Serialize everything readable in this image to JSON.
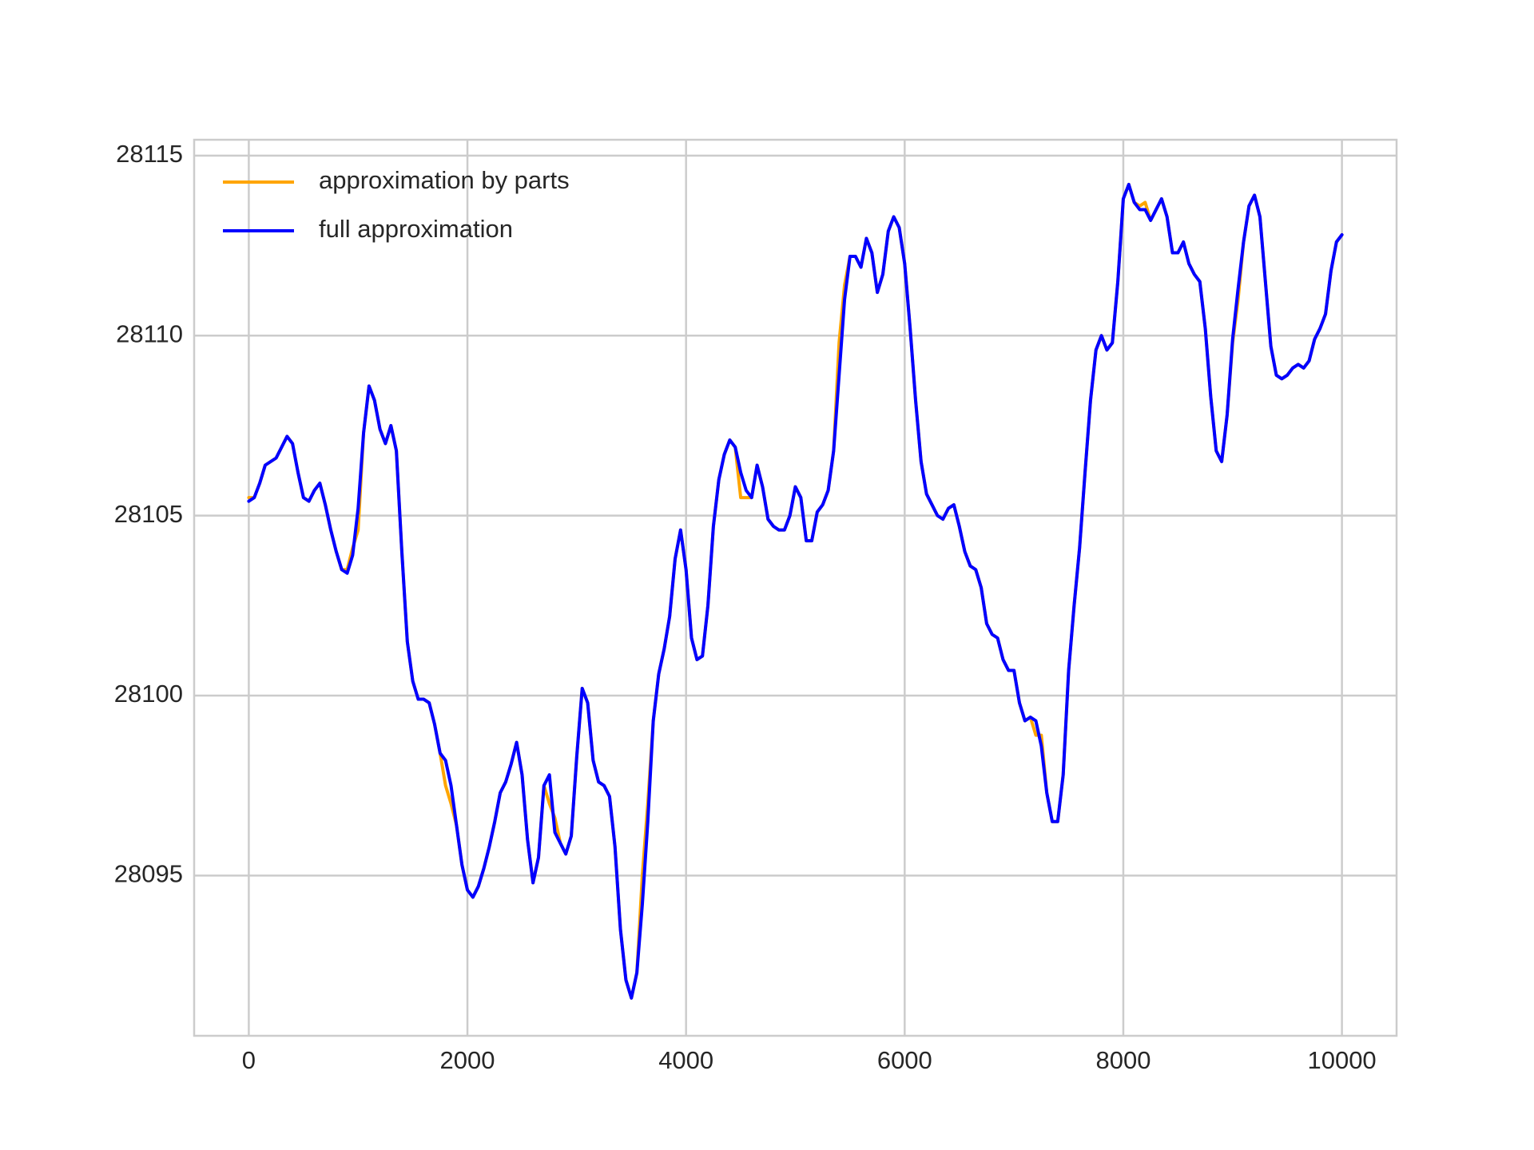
{
  "chart_data": {
    "type": "line",
    "x": [
      0,
      50,
      100,
      150,
      200,
      250,
      300,
      350,
      400,
      450,
      500,
      550,
      600,
      650,
      700,
      750,
      800,
      850,
      900,
      950,
      1000,
      1050,
      1100,
      1150,
      1200,
      1250,
      1300,
      1350,
      1400,
      1450,
      1500,
      1550,
      1600,
      1650,
      1700,
      1750,
      1800,
      1850,
      1900,
      1950,
      2000,
      2050,
      2100,
      2150,
      2200,
      2250,
      2300,
      2350,
      2400,
      2450,
      2500,
      2550,
      2600,
      2650,
      2700,
      2750,
      2800,
      2850,
      2900,
      2950,
      3000,
      3050,
      3100,
      3150,
      3200,
      3250,
      3300,
      3350,
      3400,
      3450,
      3500,
      3550,
      3600,
      3650,
      3700,
      3750,
      3800,
      3850,
      3900,
      3950,
      4000,
      4050,
      4100,
      4150,
      4200,
      4250,
      4300,
      4350,
      4400,
      4450,
      4500,
      4550,
      4600,
      4650,
      4700,
      4750,
      4800,
      4850,
      4900,
      4950,
      5000,
      5050,
      5100,
      5150,
      5200,
      5250,
      5300,
      5350,
      5400,
      5450,
      5500,
      5550,
      5600,
      5650,
      5700,
      5750,
      5800,
      5850,
      5900,
      5950,
      6000,
      6050,
      6100,
      6150,
      6200,
      6250,
      6300,
      6350,
      6400,
      6450,
      6500,
      6550,
      6600,
      6650,
      6700,
      6750,
      6800,
      6850,
      6900,
      6950,
      7000,
      7050,
      7100,
      7150,
      7200,
      7250,
      7300,
      7350,
      7400,
      7450,
      7500,
      7550,
      7600,
      7650,
      7700,
      7750,
      7800,
      7850,
      7900,
      7950,
      8000,
      8050,
      8100,
      8150,
      8200,
      8250,
      8300,
      8350,
      8400,
      8450,
      8500,
      8550,
      8600,
      8650,
      8700,
      8750,
      8800,
      8850,
      8900,
      8950,
      9000,
      9050,
      9100,
      9150,
      9200,
      9250,
      9300,
      9350,
      9400,
      9450,
      9500,
      9550,
      9600,
      9650,
      9700,
      9750,
      9800,
      9850,
      9900,
      9950,
      10000
    ],
    "series": [
      {
        "name": "approximation by parts",
        "color": "orange",
        "values": [
          28105.5,
          28105.5,
          28105.9,
          28106.4,
          28106.5,
          28106.6,
          28106.9,
          28107.2,
          28107.0,
          28106.2,
          28105.5,
          28105.4,
          28105.7,
          28105.9,
          28105.3,
          28104.6,
          28104.0,
          28103.5,
          28103.5,
          28104.1,
          28104.6,
          28107.3,
          28108.6,
          28108.2,
          28107.4,
          28107.0,
          28107.5,
          28106.8,
          28104.0,
          28101.5,
          28100.4,
          28099.9,
          28099.9,
          28099.8,
          28099.2,
          28098.4,
          28097.5,
          28097.0,
          28096.4,
          28095.3,
          28094.6,
          28094.4,
          28094.7,
          28095.2,
          28095.8,
          28096.5,
          28097.3,
          28097.6,
          28098.1,
          28098.7,
          28097.8,
          28096.0,
          28094.8,
          28095.5,
          28097.5,
          28097.0,
          28096.6,
          28095.9,
          28095.6,
          28096.1,
          28098.3,
          28100.2,
          28099.8,
          28098.2,
          28097.6,
          28097.5,
          28097.2,
          28095.8,
          28093.5,
          28092.1,
          28091.6,
          28092.3,
          28095.0,
          28097.0,
          28099.3,
          28100.6,
          28101.3,
          28102.2,
          28103.8,
          28104.6,
          28103.5,
          28101.6,
          28101.0,
          28101.1,
          28102.5,
          28104.7,
          28106.0,
          28106.7,
          28107.1,
          28106.9,
          28105.5,
          28105.5,
          28105.5,
          28106.4,
          28105.8,
          28104.9,
          28104.7,
          28104.6,
          28104.6,
          28105.0,
          28105.8,
          28105.5,
          28104.3,
          28104.3,
          28105.1,
          28105.3,
          28105.7,
          28106.8,
          28109.8,
          28111.4,
          28112.2,
          28112.2,
          28111.9,
          28112.7,
          28112.3,
          28111.2,
          28111.7,
          28112.9,
          28113.3,
          28113.0,
          28112.0,
          28110.2,
          28108.2,
          28106.5,
          28105.6,
          28105.3,
          28105.0,
          28104.9,
          28105.2,
          28105.3,
          28104.7,
          28104.0,
          28103.6,
          28103.5,
          28103.0,
          28102.0,
          28101.7,
          28101.6,
          28101.0,
          28100.7,
          28100.7,
          28099.8,
          28099.3,
          28099.4,
          28098.9,
          28098.9,
          28097.3,
          28096.5,
          28096.5,
          28097.8,
          28100.7,
          28102.5,
          28104.1,
          28106.2,
          28108.2,
          28109.6,
          28110.0,
          28109.6,
          28109.8,
          28111.5,
          28113.8,
          28114.2,
          28113.7,
          28113.6,
          28113.7,
          28113.2,
          28113.5,
          28113.8,
          28113.3,
          28112.3,
          28112.3,
          28112.6,
          28112.0,
          28111.7,
          28111.5,
          28110.2,
          28108.3,
          28106.8,
          28106.5,
          28107.8,
          28109.8,
          28111.0,
          28112.6,
          28113.6,
          28113.9,
          28113.3,
          28111.5,
          28109.7,
          28108.9,
          28108.8,
          28108.9,
          28109.1,
          28109.2,
          28109.1,
          28109.3,
          28109.9,
          28110.2,
          28110.6,
          28111.8,
          28112.6,
          28112.8
        ]
      },
      {
        "name": "full approximation",
        "color": "blue",
        "values": [
          28105.4,
          28105.5,
          28105.9,
          28106.4,
          28106.5,
          28106.6,
          28106.9,
          28107.2,
          28107.0,
          28106.2,
          28105.5,
          28105.4,
          28105.7,
          28105.9,
          28105.3,
          28104.6,
          28104.0,
          28103.5,
          28103.4,
          28103.9,
          28105.2,
          28107.3,
          28108.6,
          28108.2,
          28107.4,
          28107.0,
          28107.5,
          28106.8,
          28104.0,
          28101.5,
          28100.4,
          28099.9,
          28099.9,
          28099.8,
          28099.2,
          28098.4,
          28098.2,
          28097.5,
          28096.4,
          28095.3,
          28094.6,
          28094.4,
          28094.7,
          28095.2,
          28095.8,
          28096.5,
          28097.3,
          28097.6,
          28098.1,
          28098.7,
          28097.8,
          28096.0,
          28094.8,
          28095.5,
          28097.5,
          28097.8,
          28096.2,
          28095.9,
          28095.6,
          28096.1,
          28098.3,
          28100.2,
          28099.8,
          28098.2,
          28097.6,
          28097.5,
          28097.2,
          28095.8,
          28093.5,
          28092.1,
          28091.6,
          28092.3,
          28094.2,
          28096.5,
          28099.3,
          28100.6,
          28101.3,
          28102.2,
          28103.8,
          28104.6,
          28103.5,
          28101.6,
          28101.0,
          28101.1,
          28102.5,
          28104.7,
          28106.0,
          28106.7,
          28107.1,
          28106.9,
          28106.2,
          28105.7,
          28105.5,
          28106.4,
          28105.8,
          28104.9,
          28104.7,
          28104.6,
          28104.6,
          28105.0,
          28105.8,
          28105.5,
          28104.3,
          28104.3,
          28105.1,
          28105.3,
          28105.7,
          28106.8,
          28108.9,
          28111.0,
          28112.2,
          28112.2,
          28111.9,
          28112.7,
          28112.3,
          28111.2,
          28111.7,
          28112.9,
          28113.3,
          28113.0,
          28112.0,
          28110.2,
          28108.2,
          28106.5,
          28105.6,
          28105.3,
          28105.0,
          28104.9,
          28105.2,
          28105.3,
          28104.7,
          28104.0,
          28103.6,
          28103.5,
          28103.0,
          28102.0,
          28101.7,
          28101.6,
          28101.0,
          28100.7,
          28100.7,
          28099.8,
          28099.3,
          28099.4,
          28099.3,
          28098.6,
          28097.3,
          28096.5,
          28096.5,
          28097.8,
          28100.7,
          28102.5,
          28104.1,
          28106.2,
          28108.2,
          28109.6,
          28110.0,
          28109.6,
          28109.8,
          28111.5,
          28113.8,
          28114.2,
          28113.7,
          28113.5,
          28113.5,
          28113.2,
          28113.5,
          28113.8,
          28113.3,
          28112.3,
          28112.3,
          28112.6,
          28112.0,
          28111.7,
          28111.5,
          28110.2,
          28108.3,
          28106.8,
          28106.5,
          28107.8,
          28109.9,
          28111.3,
          28112.6,
          28113.6,
          28113.9,
          28113.3,
          28111.5,
          28109.7,
          28108.9,
          28108.8,
          28108.9,
          28109.1,
          28109.2,
          28109.1,
          28109.3,
          28109.9,
          28110.2,
          28110.6,
          28111.8,
          28112.6,
          28112.8
        ]
      }
    ],
    "xlim": [
      -500,
      10500
    ],
    "ylim": [
      28090.55,
      28115.44
    ],
    "xticks": [
      0,
      2000,
      4000,
      6000,
      8000,
      10000
    ],
    "yticks": [
      28095,
      28100,
      28105,
      28110,
      28115
    ],
    "grid": true,
    "legend": "upper left"
  }
}
